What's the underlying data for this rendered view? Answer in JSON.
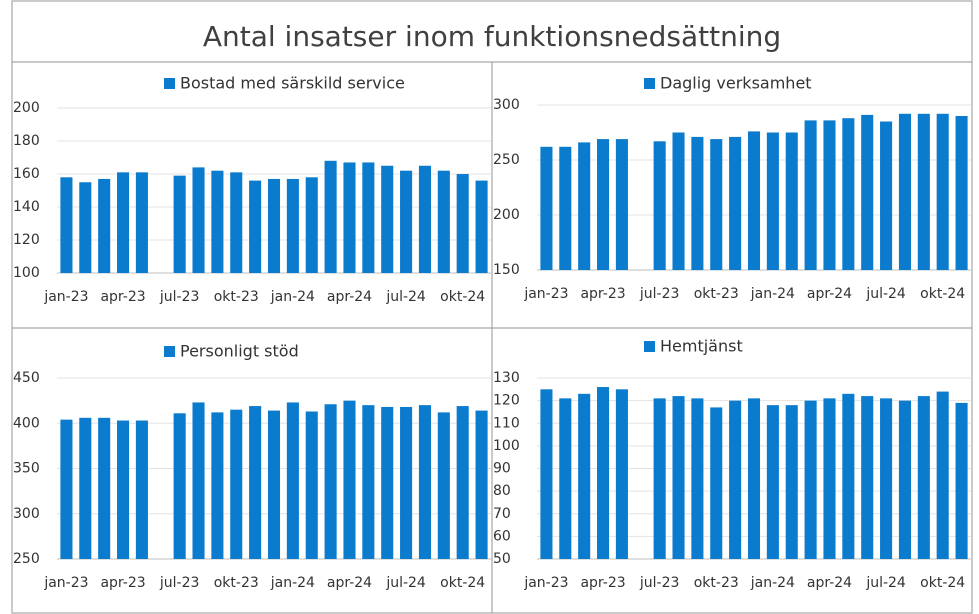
{
  "title": "Antal insatser inom funktionsnedsättning",
  "chart_data": [
    {
      "type": "bar",
      "categories": [
        "jan-23",
        null,
        null,
        "apr-23",
        null,
        null,
        "jul-23",
        null,
        null,
        "okt-23",
        null,
        null,
        "jan-24",
        null,
        null,
        "apr-24",
        null,
        null,
        "jul-24",
        null,
        null,
        "okt-24",
        null
      ],
      "series": [
        {
          "name": "Bostad med särskild service",
          "color": "#0b7bcd",
          "values": [
            158,
            155,
            157,
            161,
            161,
            null,
            159,
            164,
            162,
            161,
            156,
            157,
            157,
            158,
            168,
            167,
            167,
            165,
            162,
            165,
            162,
            160,
            156
          ]
        }
      ],
      "ylim": [
        100,
        200
      ],
      "yticks": [
        100,
        120,
        140,
        160,
        180,
        200
      ],
      "grid": true,
      "legend": "top"
    },
    {
      "type": "bar",
      "categories": [
        "jan-23",
        null,
        null,
        "apr-23",
        null,
        null,
        "jul-23",
        null,
        null,
        "okt-23",
        null,
        null,
        "jan-24",
        null,
        null,
        "apr-24",
        null,
        null,
        "jul-24",
        null,
        null,
        "okt-24",
        null
      ],
      "series": [
        {
          "name": "Daglig verksamhet",
          "color": "#0b7bcd",
          "values": [
            262,
            262,
            266,
            269,
            269,
            null,
            267,
            275,
            271,
            269,
            271,
            276,
            275,
            275,
            286,
            286,
            288,
            291,
            285,
            292,
            292,
            292,
            290
          ]
        }
      ],
      "ylim": [
        150,
        300
      ],
      "yticks": [
        150,
        200,
        250,
        300
      ],
      "grid": true,
      "legend": "top"
    },
    {
      "type": "bar",
      "categories": [
        "jan-23",
        null,
        null,
        "apr-23",
        null,
        null,
        "jul-23",
        null,
        null,
        "okt-23",
        null,
        null,
        "jan-24",
        null,
        null,
        "apr-24",
        null,
        null,
        "jul-24",
        null,
        null,
        "okt-24",
        null
      ],
      "series": [
        {
          "name": "Personligt stöd",
          "color": "#0b7bcd",
          "values": [
            404,
            406,
            406,
            403,
            403,
            null,
            411,
            423,
            412,
            415,
            419,
            414,
            423,
            413,
            421,
            425,
            420,
            418,
            418,
            420,
            412,
            419,
            414
          ]
        }
      ],
      "ylim": [
        250,
        450
      ],
      "yticks": [
        250,
        300,
        350,
        400,
        450
      ],
      "grid": true,
      "legend": "top"
    },
    {
      "type": "bar",
      "categories": [
        "jan-23",
        null,
        null,
        "apr-23",
        null,
        null,
        "jul-23",
        null,
        null,
        "okt-23",
        null,
        null,
        "jan-24",
        null,
        null,
        "apr-24",
        null,
        null,
        "jul-24",
        null,
        null,
        "okt-24",
        null
      ],
      "series": [
        {
          "name": "Hemtjänst",
          "color": "#0b7bcd",
          "values": [
            125,
            121,
            123,
            126,
            125,
            null,
            121,
            122,
            121,
            117,
            120,
            121,
            118,
            118,
            120,
            121,
            123,
            122,
            121,
            120,
            122,
            124,
            119
          ]
        }
      ],
      "ylim": [
        50,
        130
      ],
      "yticks": [
        50,
        60,
        70,
        80,
        90,
        100,
        110,
        120,
        130
      ],
      "grid": true,
      "legend": "top"
    }
  ]
}
